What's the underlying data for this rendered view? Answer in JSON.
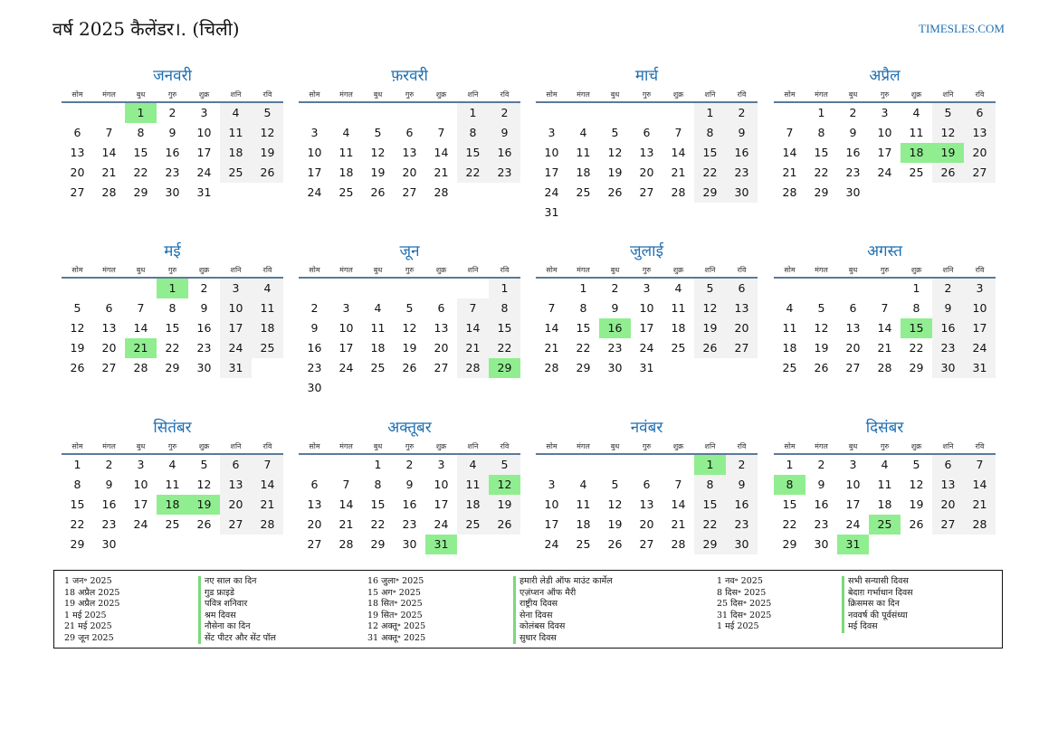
{
  "title": "वर्ष 2025 कैलेंडर।. (चिली)",
  "site": "TIMESLES.COM",
  "weekdays": [
    "सोम",
    "मंगल",
    "बुध",
    "गुरु",
    "शुक्र",
    "शनि",
    "रवि"
  ],
  "colors": {
    "accent": "#1f6fb2",
    "holiday": "#90ee90",
    "weekend": "#f2f2f2"
  },
  "months": [
    {
      "name": "जनवरी",
      "start": 2,
      "days": 31,
      "holidays": [
        1
      ]
    },
    {
      "name": "फ़रवरी",
      "start": 5,
      "days": 28,
      "holidays": []
    },
    {
      "name": "मार्च",
      "start": 5,
      "days": 31,
      "holidays": []
    },
    {
      "name": "अप्रैल",
      "start": 1,
      "days": 30,
      "holidays": [
        18,
        19
      ]
    },
    {
      "name": "मई",
      "start": 3,
      "days": 31,
      "holidays": [
        1,
        21
      ]
    },
    {
      "name": "जून",
      "start": 6,
      "days": 30,
      "holidays": [
        29
      ]
    },
    {
      "name": "जुलाई",
      "start": 1,
      "days": 31,
      "holidays": [
        16
      ]
    },
    {
      "name": "अगस्त",
      "start": 4,
      "days": 31,
      "holidays": [
        15
      ]
    },
    {
      "name": "सितंबर",
      "start": 0,
      "days": 30,
      "holidays": [
        18,
        19
      ]
    },
    {
      "name": "अक्तूबर",
      "start": 2,
      "days": 31,
      "holidays": [
        12,
        31
      ]
    },
    {
      "name": "नवंबर",
      "start": 5,
      "days": 30,
      "holidays": [
        1
      ]
    },
    {
      "name": "दिसंबर",
      "start": 0,
      "days": 31,
      "holidays": [
        8,
        25,
        31
      ]
    }
  ],
  "holiday_columns": [
    {
      "dates": [
        "1 जन॰ 2025",
        "18 अप्रैल 2025",
        "19 अप्रैल 2025",
        "1 मई 2025",
        "21 मई 2025",
        "29 जून 2025"
      ],
      "names": [
        "नए साल का दिन",
        "गुड फ्राइडे",
        "पवित्र शनिवार",
        "श्रम दिवस",
        "नौसेना का दिन",
        "सेंट पीटर और सेंट पॉल"
      ]
    },
    {
      "dates": [
        "16 जुला॰ 2025",
        "15 अग॰ 2025",
        "18 सित॰ 2025",
        "19 सित॰ 2025",
        "12 अक्तू॰ 2025",
        "31 अक्तू॰ 2025"
      ],
      "names": [
        "हमारी लेडी ऑफ माउंट कार्मेल",
        "एज़ंप्शन ऑफ मैरी",
        "राष्ट्रीय दिवस",
        "सेना दिवस",
        "कोलंबस दिवस",
        "सुधार दिवस"
      ]
    },
    {
      "dates": [
        "1 नव॰ 2025",
        "8 दिस॰ 2025",
        "25 दिस॰ 2025",
        "31 दिस॰ 2025",
        "1 मई 2025"
      ],
      "names": [
        "सभी सन्यासी दिवस",
        "बेदाग़ गर्भाधान दिवस",
        "क्रिसमस का दिन",
        "नववर्ष की पूर्वसंध्या",
        "मई दिवस"
      ]
    }
  ]
}
